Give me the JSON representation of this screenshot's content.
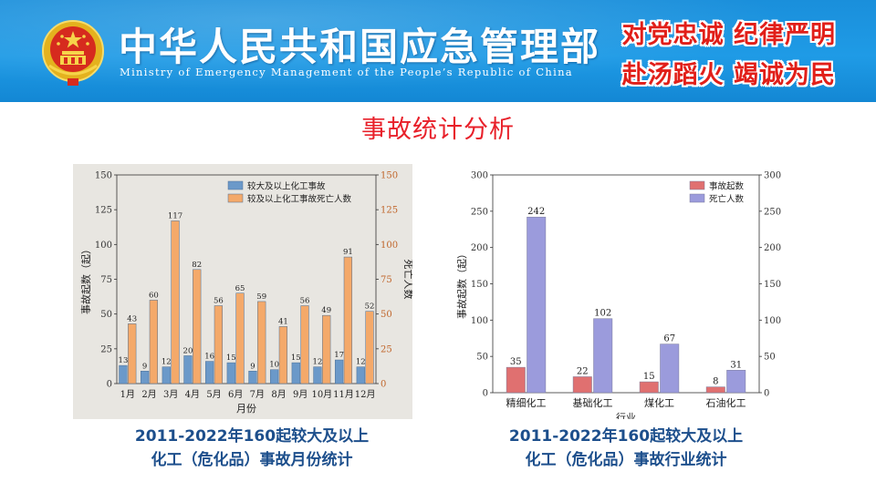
{
  "header": {
    "title_cn": "中华人民共和国应急管理部",
    "title_en": "Ministry of Emergency Management of the People’s Republic of China",
    "slogan_line1": "对党忠诚  纪律严明",
    "slogan_line2": "赴汤蹈火  竭诚为民",
    "emblem_icon": "national-emblem-icon",
    "colors": {
      "banner": "#1f9be6",
      "slogan": "#e11f19",
      "title": "#e8202a",
      "caption": "#1d4f8c"
    }
  },
  "page_title": "事故统计分析",
  "captions": {
    "month": "2011-2022年160起较大及以上\n化工（危化品）事故月份统计",
    "industry": "2011-2022年160起较大及以上\n化工（危化品）事故行业统计"
  },
  "chart_data": [
    {
      "type": "bar",
      "background": "#e8e6e1",
      "categories": [
        "1月",
        "2月",
        "3月",
        "4月",
        "5月",
        "6月",
        "7月",
        "8月",
        "9月",
        "10月",
        "11月",
        "12月"
      ],
      "series": [
        {
          "name": "较大及以上化工事故",
          "axis": "left",
          "color": "#6b99c9",
          "values": [
            13,
            9,
            12,
            20,
            16,
            15,
            9,
            10,
            15,
            12,
            17,
            12
          ]
        },
        {
          "name": "较及以上化工事故死亡人数",
          "axis": "right",
          "color": "#f4a96a",
          "values": [
            43,
            60,
            117,
            82,
            56,
            65,
            59,
            41,
            56,
            49,
            91,
            52
          ]
        }
      ],
      "xlabel": "月份",
      "ylabel": "事故起数（起）",
      "ylabel_right": "死亡人数",
      "ylim": [
        0,
        150
      ],
      "yticks": [
        0,
        25,
        50,
        75,
        100,
        125,
        150
      ],
      "ylim_right": [
        0,
        150
      ],
      "yticks_right": [
        0,
        25,
        50,
        75,
        100,
        125,
        150
      ],
      "legend": "top-right",
      "grid": false
    },
    {
      "type": "bar",
      "background": "#ffffff",
      "categories": [
        "精细化工",
        "基础化工",
        "煤化工",
        "石油化工"
      ],
      "series": [
        {
          "name": "事故起数",
          "axis": "left",
          "color": "#e07070",
          "values": [
            35,
            22,
            15,
            8
          ]
        },
        {
          "name": "死亡人数",
          "axis": "right",
          "color": "#9b9bdc",
          "values": [
            242,
            102,
            67,
            31
          ]
        }
      ],
      "xlabel": "行业",
      "ylabel": "事故起数（起）",
      "ylabel_right": "死亡人数",
      "ylim": [
        0,
        300
      ],
      "yticks": [
        0,
        50,
        100,
        150,
        200,
        250,
        300
      ],
      "ylim_right": [
        0,
        300
      ],
      "yticks_right": [
        0,
        50,
        100,
        150,
        200,
        250,
        300
      ],
      "legend": "top-right",
      "grid": false
    }
  ]
}
